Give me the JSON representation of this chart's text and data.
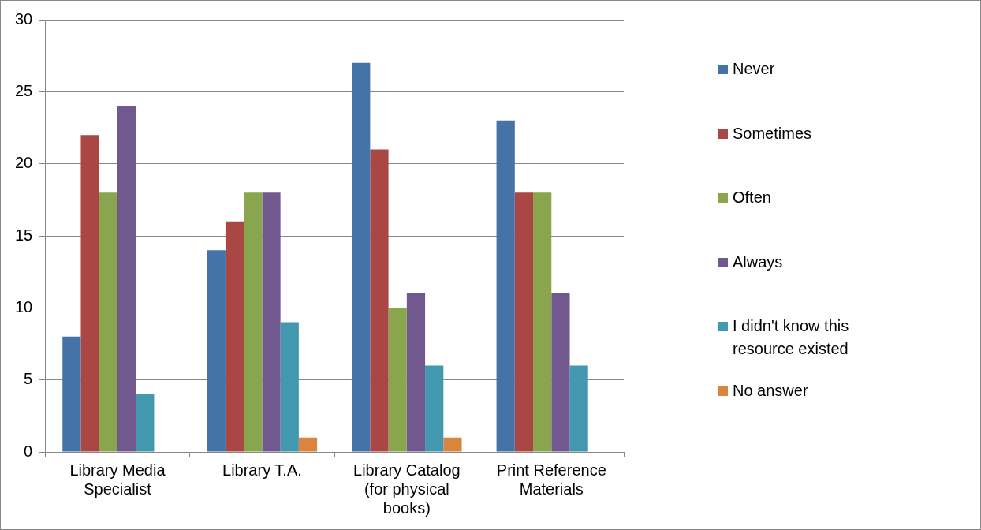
{
  "chart_data": {
    "type": "bar",
    "categories": [
      "Library Media Specialist",
      "Library T.A.",
      "Library Catalog (for physical books)",
      "Print Reference Materials"
    ],
    "series": [
      {
        "name": "Never",
        "color": "#4572a7",
        "values": [
          8,
          14,
          27,
          23
        ]
      },
      {
        "name": "Sometimes",
        "color": "#aa4643",
        "values": [
          22,
          16,
          21,
          18
        ]
      },
      {
        "name": "Often",
        "color": "#89a54e",
        "values": [
          18,
          18,
          10,
          18
        ]
      },
      {
        "name": "Always",
        "color": "#71588f",
        "values": [
          24,
          18,
          11,
          11
        ]
      },
      {
        "name": "I didn't know this resource existed",
        "color": "#4198af",
        "values": [
          4,
          9,
          6,
          6
        ]
      },
      {
        "name": "No answer",
        "color": "#db843d",
        "values": [
          0,
          1,
          1,
          0
        ]
      }
    ],
    "ylim": [
      0,
      30
    ],
    "yticks": [
      0,
      5,
      10,
      15,
      20,
      25,
      30
    ],
    "grid": "y",
    "legend": "right"
  }
}
